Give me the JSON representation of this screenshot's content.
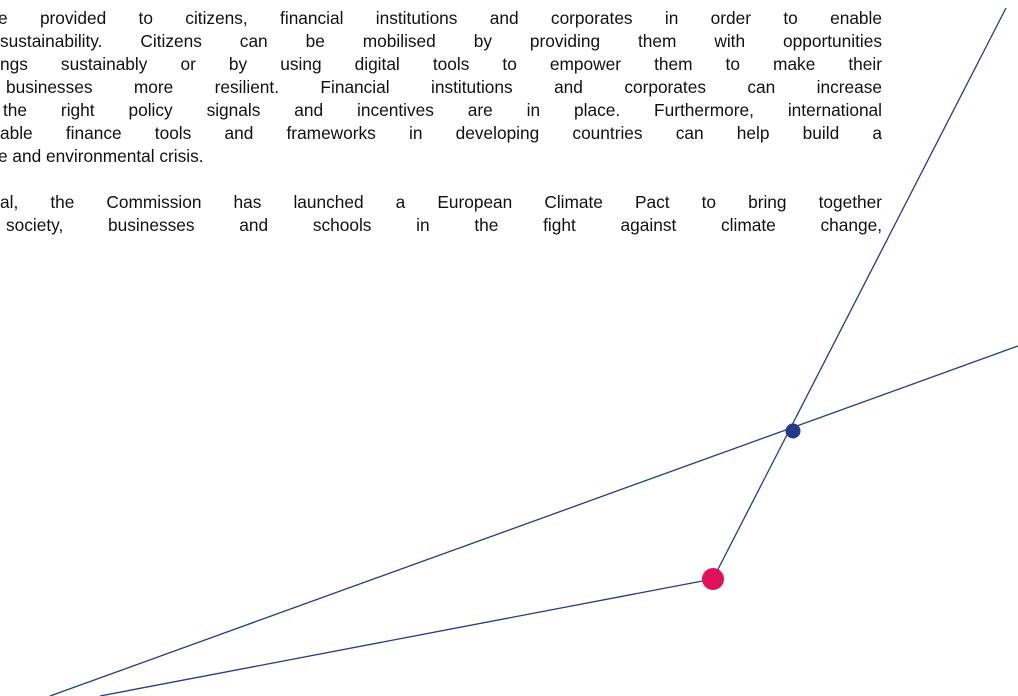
{
  "document": {
    "paragraphs": [
      {
        "lines": [
          "e provided to citizens, financial institutions and corporates in order to enable",
          "sustainability. Citizens can be mobilised by providing them with opportunities",
          "ngs sustainably or by using digital tools to empower them to make their",
          "businesses more resilient. Financial institutions and corporates can increase",
          "the right policy signals and incentives are in place. Furthermore, international",
          "able finance tools and frameworks in developing countries can help build a",
          "e and environmental crisis."
        ]
      },
      {
        "lines": [
          "al, the Commission has launched a European Climate Pact to bring together",
          "society, businesses and schools in the fight against climate change,"
        ]
      }
    ]
  }
}
